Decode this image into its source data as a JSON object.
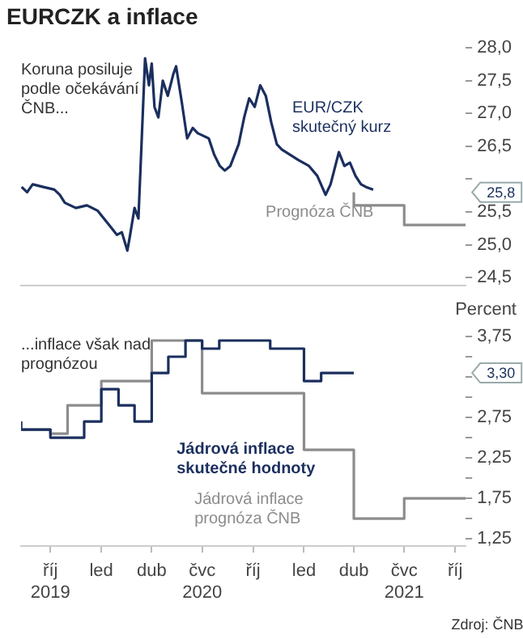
{
  "chart_data": [
    {
      "type": "line",
      "title": "EURCZK a inflace",
      "xlim": [
        "2019-08-09",
        "2021-10-20"
      ],
      "ylim": [
        24.38,
        28
      ],
      "yticks": [
        {
          "value": 24.5,
          "label": "24,5"
        },
        {
          "value": 25,
          "label": "25,0"
        },
        {
          "value": 25.5,
          "label": "25,5"
        },
        {
          "value": 26,
          "label": null
        },
        {
          "value": 26.5,
          "label": "26,5"
        },
        {
          "value": 27,
          "label": "27,0"
        },
        {
          "value": 27.5,
          "label": "27,5"
        },
        {
          "value": 28,
          "label": "28,0"
        }
      ],
      "tick_labels": "y",
      "grid": false,
      "legend": false,
      "annotations": [
        "Koruna posiluje podle očekávání ČNB...",
        "25,8"
      ],
      "series": [
        {
          "name": "EUR/CZK skutečný kurz",
          "color": "#1b2f5e",
          "x": [
            "2019-08-10",
            "2019-08-20",
            "2019-08-30",
            "2019-09-18",
            "2019-10-08",
            "2019-10-18",
            "2019-10-27",
            "2019-11-16",
            "2019-12-06",
            "2019-12-25",
            "2020-01-14",
            "2020-01-29",
            "2020-02-07",
            "2020-02-17",
            "2020-02-22",
            "2020-03-01",
            "2020-03-08",
            "2020-03-14",
            "2020-03-20",
            "2020-03-27",
            "2020-04-01",
            "2020-04-06",
            "2020-04-13",
            "2020-04-21",
            "2020-04-30",
            "2020-05-10",
            "2020-05-15",
            "2020-05-25",
            "2020-06-04",
            "2020-06-14",
            "2020-06-23",
            "2020-07-03",
            "2020-07-13",
            "2020-07-23",
            "2020-08-02",
            "2020-08-11",
            "2020-08-21",
            "2020-09-05",
            "2020-09-15",
            "2020-09-24",
            "2020-10-04",
            "2020-10-14",
            "2020-10-24",
            "2020-11-03",
            "2020-11-13",
            "2020-11-22",
            "2020-12-07",
            "2020-12-22",
            "2021-01-10",
            "2021-01-25",
            "2021-02-09",
            "2021-02-18",
            "2021-03-05",
            "2021-03-15",
            "2021-03-25",
            "2021-04-04",
            "2021-04-14",
            "2021-04-23",
            "2021-05-06"
          ],
          "values": [
            25.88,
            25.8,
            25.92,
            25.88,
            25.84,
            25.76,
            25.64,
            25.56,
            25.6,
            25.52,
            25.31,
            25.15,
            25.19,
            24.91,
            25.15,
            25.56,
            25.4,
            26.62,
            27.84,
            27.43,
            27.76,
            27.1,
            26.94,
            27.5,
            27.27,
            27.6,
            27.72,
            27.19,
            26.62,
            26.78,
            26.7,
            26.66,
            26.62,
            26.37,
            26.2,
            26.13,
            26.2,
            26.53,
            26.94,
            27.23,
            27.1,
            27.43,
            27.27,
            26.86,
            26.53,
            26.45,
            26.37,
            26.29,
            26.2,
            26.05,
            25.76,
            25.92,
            26.41,
            26.2,
            26.25,
            26.05,
            25.92,
            25.88,
            25.84
          ]
        },
        {
          "name": "Prognóza ČNB",
          "type": "step",
          "color": "#8c8c8c",
          "x": [
            "2021-04-01",
            "2021-07-01",
            "2021-10-01",
            "2021-10-20"
          ],
          "values": [
            25.8,
            25.6,
            25.3,
            25.3
          ]
        }
      ]
    },
    {
      "type": "step",
      "ylabel": "Percent",
      "xlim": [
        "2019-08-09",
        "2021-10-20"
      ],
      "ylim": [
        1.16,
        3.75
      ],
      "xticks": [
        {
          "value": "2019-10-01",
          "label": "říj 2019"
        },
        {
          "value": "2020-01-01",
          "label": "led"
        },
        {
          "value": "2020-04-01",
          "label": "dub"
        },
        {
          "value": "2020-07-01",
          "label": "čvc 2020"
        },
        {
          "value": "2020-10-01",
          "label": "říj"
        },
        {
          "value": "2021-01-01",
          "label": "led"
        },
        {
          "value": "2021-04-01",
          "label": "dub"
        },
        {
          "value": "2021-07-01",
          "label": "čvc 2021"
        },
        {
          "value": "2021-10-01",
          "label": "říj"
        }
      ],
      "yticks": [
        {
          "value": 1.25,
          "label": "1,25"
        },
        {
          "value": 1.5,
          "label": null
        },
        {
          "value": 1.75,
          "label": "1,75"
        },
        {
          "value": 2,
          "label": null
        },
        {
          "value": 2.25,
          "label": "2,25"
        },
        {
          "value": 2.5,
          "label": null
        },
        {
          "value": 2.75,
          "label": "2,75"
        },
        {
          "value": 3,
          "label": null
        },
        {
          "value": 3.25,
          "label": null
        },
        {
          "value": 3.5,
          "label": null
        },
        {
          "value": 3.75,
          "label": "3,75"
        }
      ],
      "grid": false,
      "legend": false,
      "annotations": [
        "...inflace však nad prognózou",
        "Zdroj: ČNB",
        "3,30"
      ],
      "series": [
        {
          "name": "Jádrová inflace skutečné hodnoty",
          "color": "#1b2f5e",
          "x": [
            "2019-08-09",
            "2019-09-01",
            "2019-10-01",
            "2019-11-01",
            "2019-12-01",
            "2020-01-01",
            "2020-02-01",
            "2020-03-01",
            "2020-04-01",
            "2020-05-01",
            "2020-06-01",
            "2020-07-01",
            "2020-08-01",
            "2020-09-01",
            "2020-10-01",
            "2020-11-01",
            "2020-12-01",
            "2021-01-01",
            "2021-02-01",
            "2021-03-01",
            "2021-04-01"
          ],
          "values": [
            2.7,
            2.6,
            2.6,
            2.5,
            2.5,
            2.7,
            3.1,
            2.9,
            2.7,
            3.3,
            3.5,
            3.7,
            3.6,
            3.7,
            3.7,
            3.7,
            3.6,
            3.6,
            3.2,
            3.3,
            3.3
          ]
        },
        {
          "name": "Jádrová inflace prognóza ČNB",
          "color": "#8c8c8c",
          "x": [
            "2019-08-09",
            "2019-10-01",
            "2019-11-01",
            "2020-01-01",
            "2020-04-01",
            "2020-07-01",
            "2021-01-01",
            "2021-04-01",
            "2021-07-01",
            "2021-10-01",
            "2021-10-20"
          ],
          "values": [
            2.7,
            2.6,
            2.55,
            2.9,
            3.2,
            3.7,
            3.05,
            2.35,
            1.5,
            1.75,
            1.75
          ]
        }
      ]
    }
  ]
}
